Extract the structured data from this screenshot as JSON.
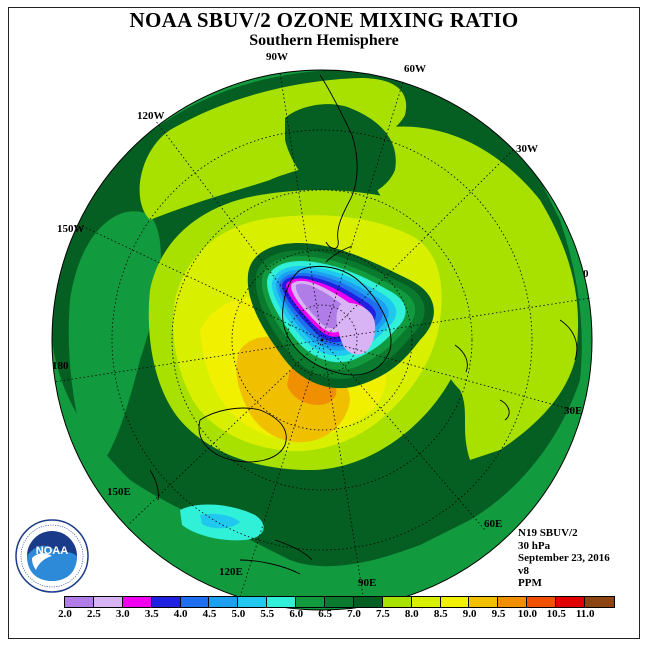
{
  "title": "NOAA SBUV/2 OZONE MIXING RATIO",
  "subtitle": "Southern Hemisphere",
  "longitude_labels": [
    "90W",
    "60W",
    "30W",
    "0",
    "30E",
    "60E",
    "90E",
    "120E",
    "150E",
    "180",
    "150W",
    "120W"
  ],
  "info": {
    "satellite": "N19 SBUV/2",
    "pressure": "30 hPa",
    "date": "September 23, 2016",
    "version": "v8",
    "units": "PPM"
  },
  "logo": {
    "text": "NOAA",
    "ring_text": "NATIONAL OCEANIC AND ATMOSPHERIC ADMINISTRATION · U.S. DEPARTMENT OF COMMERCE"
  },
  "colorbar": {
    "ticks": [
      "2.0",
      "2.5",
      "3.0",
      "3.5",
      "4.0",
      "4.5",
      "5.0",
      "5.5",
      "6.0",
      "6.5",
      "7.0",
      "7.5",
      "8.0",
      "8.5",
      "9.0",
      "9.5",
      "10.0",
      "10.5",
      "11.0"
    ],
    "colors": [
      "#b07ce8",
      "#d8b4f5",
      "#f000f0",
      "#2020e0",
      "#1f6ef0",
      "#1ea0f0",
      "#20c8f0",
      "#30f0d8",
      "#129a3e",
      "#0a7a2e",
      "#055f23",
      "#a8e000",
      "#d8f000",
      "#f0f000",
      "#f0c000",
      "#f09000",
      "#f05000",
      "#e00000",
      "#8b4513"
    ]
  },
  "map": {
    "regions": [
      {
        "name": "outer-dark-green",
        "level": "7.0",
        "color": "#055f23"
      },
      {
        "name": "mid-green",
        "level": "6.5",
        "color": "#0a7a2e"
      },
      {
        "name": "lime-band",
        "level": "7.5",
        "color": "#a8e000"
      },
      {
        "name": "yellow-green",
        "level": "8.0",
        "color": "#d8f000"
      },
      {
        "name": "orange-region",
        "level": "9.0",
        "color": "#f0c000"
      },
      {
        "name": "ozone-hole-purple",
        "level": "2.0",
        "color": "#b07ce8"
      },
      {
        "name": "pacific-cyan-patch",
        "level": "5.5",
        "color": "#30f0d8"
      }
    ]
  }
}
